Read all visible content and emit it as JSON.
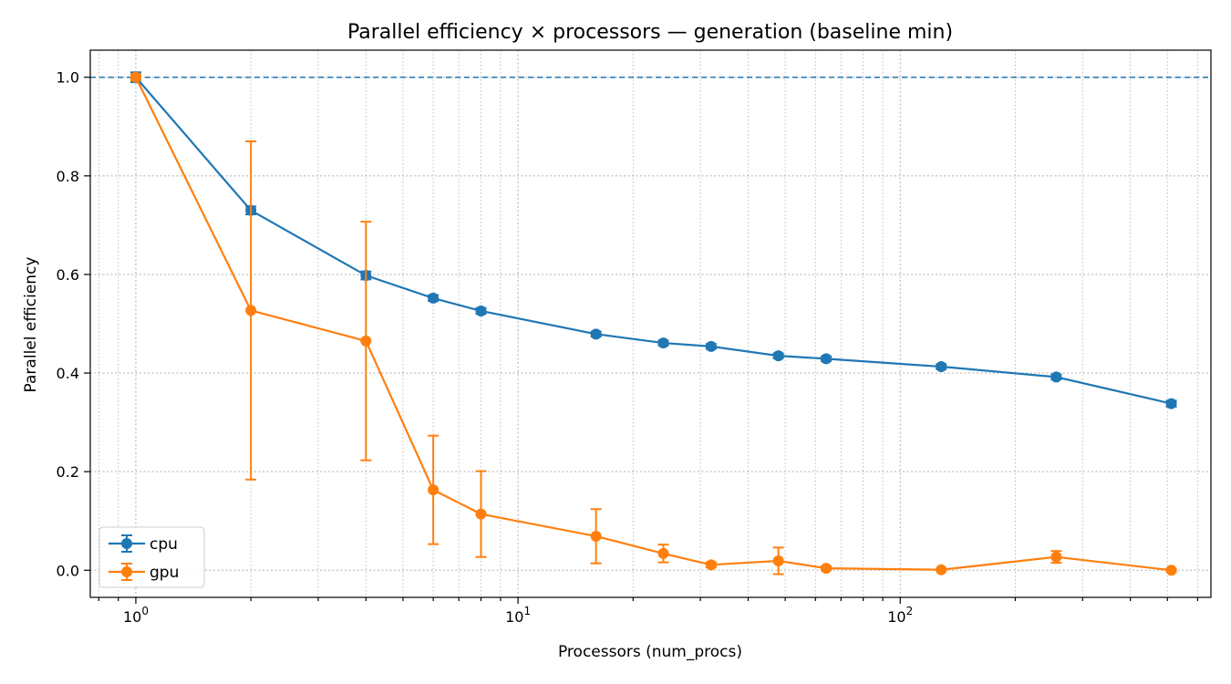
{
  "chart_data": {
    "type": "line",
    "title": "Parallel efficiency × processors — generation (baseline min)",
    "xlabel": "Processors (num_procs)",
    "ylabel": "Parallel efficiency",
    "xscale": "log",
    "xlim": [
      0.76,
      650
    ],
    "ylim": [
      -0.055,
      1.055
    ],
    "x_tick_labels": [
      {
        "value": 1,
        "base": "10",
        "exp": "0"
      },
      {
        "value": 10,
        "base": "10",
        "exp": "1"
      },
      {
        "value": 100,
        "base": "10",
        "exp": "2"
      }
    ],
    "y_ticks": [
      0.0,
      0.2,
      0.4,
      0.6,
      0.8,
      1.0
    ],
    "y_tick_labels": [
      "0.0",
      "0.2",
      "0.4",
      "0.6",
      "0.8",
      "1.0"
    ],
    "reference_line": {
      "y": 1.0,
      "style": "dashed",
      "color": "#1f77b4"
    },
    "grid": true,
    "legend_position": "lower-left",
    "series": [
      {
        "name": "cpu",
        "color": "#1f77b4",
        "x": [
          1,
          2,
          4,
          6,
          8,
          16,
          24,
          32,
          48,
          64,
          128,
          256,
          512
        ],
        "y": [
          1.0,
          0.73,
          0.598,
          0.552,
          0.526,
          0.479,
          0.461,
          0.454,
          0.435,
          0.429,
          0.413,
          0.392,
          0.338
        ],
        "err": [
          0.01,
          0.008,
          0.008,
          0.006,
          0.006,
          0.005,
          0.005,
          0.005,
          0.005,
          0.005,
          0.005,
          0.005,
          0.006
        ]
      },
      {
        "name": "gpu",
        "color": "#ff7f0e",
        "x": [
          1,
          2,
          4,
          6,
          8,
          16,
          24,
          32,
          48,
          64,
          128,
          256,
          512
        ],
        "y": [
          1.0,
          0.527,
          0.465,
          0.163,
          0.114,
          0.069,
          0.034,
          0.011,
          0.019,
          0.004,
          0.001,
          0.027,
          0.0
        ],
        "err": [
          0.006,
          0.343,
          0.242,
          0.11,
          0.087,
          0.055,
          0.018,
          0.005,
          0.027,
          0.004,
          0.002,
          0.012,
          0.003
        ]
      }
    ]
  }
}
